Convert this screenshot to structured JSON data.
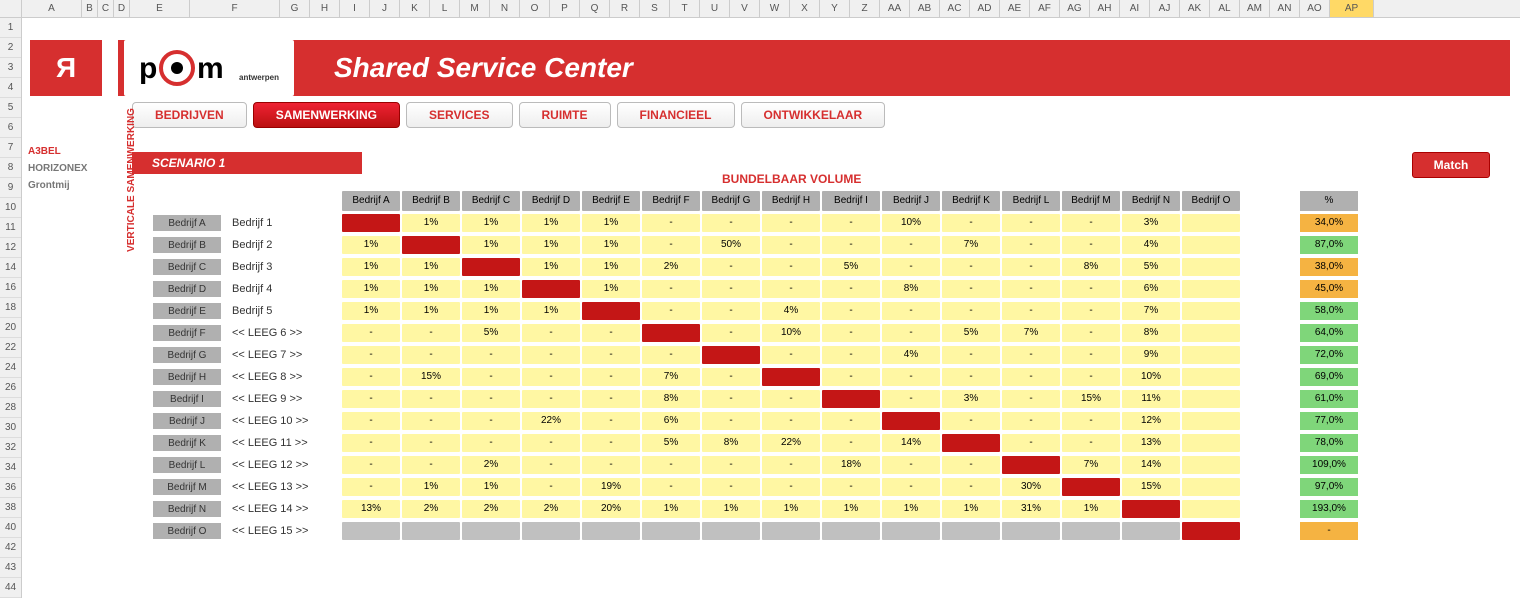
{
  "title": "Shared Service Center",
  "scenario_label": "SCENARIO 1",
  "subtitle": "BUNDELBAAR VOLUME",
  "match_label": "Match",
  "pct_header": "%",
  "red_logo_glyph": "Я",
  "sidebar_text_logos": [
    "A3BEL",
    "HORIZONEX",
    "Grontmij"
  ],
  "nav": [
    {
      "label": "BEDRIJVEN",
      "active": false
    },
    {
      "label": "SAMENWERKING",
      "active": true
    },
    {
      "label": "SERVICES",
      "active": false
    },
    {
      "label": "RUIMTE",
      "active": false
    },
    {
      "label": "FINANCIEEL",
      "active": false
    },
    {
      "label": "ONTWIKKELAAR",
      "active": false
    }
  ],
  "vertical_axis_label": "VERTICALE SAMENWERKING",
  "col_headers_excel": {
    "labels": [
      "A",
      "B",
      "C",
      "D",
      "E",
      "F",
      "G",
      "H",
      "I",
      "J",
      "K",
      "L",
      "M",
      "N",
      "O",
      "P",
      "Q",
      "R",
      "S",
      "T",
      "U",
      "V",
      "W",
      "X",
      "Y",
      "Z",
      "AA",
      "AB",
      "AC",
      "AD",
      "AE",
      "AF",
      "AG",
      "AH",
      "AI",
      "AJ",
      "AK",
      "AL",
      "AM",
      "AN",
      "AO",
      "AP"
    ],
    "widths": [
      60,
      16,
      16,
      16,
      60,
      90,
      30,
      30,
      30,
      30,
      30,
      30,
      30,
      30,
      30,
      30,
      30,
      30,
      30,
      30,
      30,
      30,
      30,
      30,
      30,
      30,
      30,
      30,
      30,
      30,
      30,
      30,
      30,
      30,
      30,
      30,
      30,
      30,
      30,
      30,
      30,
      44
    ],
    "selected_index": 41
  },
  "row_headers_excel": [
    "1",
    "2",
    "3",
    "4",
    "5",
    "6",
    "7",
    "8",
    "9",
    "10",
    "11",
    "12",
    "14",
    "16",
    "18",
    "20",
    "22",
    "24",
    "26",
    "28",
    "30",
    "32",
    "34",
    "36",
    "38",
    "40",
    "42",
    "43",
    "44"
  ],
  "companies": [
    "Bedrijf A",
    "Bedrijf B",
    "Bedrijf C",
    "Bedrijf D",
    "Bedrijf E",
    "Bedrijf F",
    "Bedrijf G",
    "Bedrijf H",
    "Bedrijf I",
    "Bedrijf J",
    "Bedrijf K",
    "Bedrijf L",
    "Bedrijf M",
    "Bedrijf N",
    "Bedrijf O"
  ],
  "row_names": [
    "Bedrijf 1",
    "Bedrijf 2",
    "Bedrijf 3",
    "Bedrijf 4",
    "Bedrijf 5",
    "<< LEEG 6 >>",
    "<< LEEG 7 >>",
    "<< LEEG 8 >>",
    "<< LEEG 9 >>",
    "<< LEEG 10 >>",
    "<< LEEG 11 >>",
    "<< LEEG 12 >>",
    "<< LEEG 13 >>",
    "<< LEEG 14 >>",
    "<< LEEG 15 >>"
  ],
  "matrix": [
    [
      "R",
      "1%",
      "1%",
      "1%",
      "1%",
      "-",
      "-",
      "-",
      "-",
      "10%",
      "-",
      "-",
      "-",
      "3%",
      ""
    ],
    [
      "1%",
      "R",
      "1%",
      "1%",
      "1%",
      "-",
      "50%",
      "-",
      "-",
      "-",
      "7%",
      "-",
      "-",
      "4%",
      ""
    ],
    [
      "1%",
      "1%",
      "R",
      "1%",
      "1%",
      "2%",
      "-",
      "-",
      "5%",
      "-",
      "-",
      "-",
      "8%",
      "5%",
      ""
    ],
    [
      "1%",
      "1%",
      "1%",
      "R",
      "1%",
      "-",
      "-",
      "-",
      "-",
      "8%",
      "-",
      "-",
      "-",
      "6%",
      ""
    ],
    [
      "1%",
      "1%",
      "1%",
      "1%",
      "R",
      "-",
      "-",
      "4%",
      "-",
      "-",
      "-",
      "-",
      "-",
      "7%",
      ""
    ],
    [
      "-",
      "-",
      "5%",
      "-",
      "-",
      "R",
      "-",
      "10%",
      "-",
      "-",
      "5%",
      "7%",
      "-",
      "8%",
      ""
    ],
    [
      "-",
      "-",
      "-",
      "-",
      "-",
      "-",
      "R",
      "-",
      "-",
      "4%",
      "-",
      "-",
      "-",
      "9%",
      ""
    ],
    [
      "-",
      "15%",
      "-",
      "-",
      "-",
      "7%",
      "-",
      "R",
      "-",
      "-",
      "-",
      "-",
      "-",
      "10%",
      ""
    ],
    [
      "-",
      "-",
      "-",
      "-",
      "-",
      "8%",
      "-",
      "-",
      "R",
      "-",
      "3%",
      "-",
      "15%",
      "11%",
      ""
    ],
    [
      "-",
      "-",
      "-",
      "22%",
      "-",
      "6%",
      "-",
      "-",
      "-",
      "R",
      "-",
      "-",
      "-",
      "12%",
      ""
    ],
    [
      "-",
      "-",
      "-",
      "-",
      "-",
      "5%",
      "8%",
      "22%",
      "-",
      "14%",
      "R",
      "-",
      "-",
      "13%",
      ""
    ],
    [
      "-",
      "-",
      "2%",
      "-",
      "-",
      "-",
      "-",
      "-",
      "18%",
      "-",
      "-",
      "R",
      "7%",
      "14%",
      ""
    ],
    [
      "-",
      "1%",
      "1%",
      "-",
      "19%",
      "-",
      "-",
      "-",
      "-",
      "-",
      "-",
      "30%",
      "R",
      "15%",
      ""
    ],
    [
      "13%",
      "2%",
      "2%",
      "2%",
      "20%",
      "1%",
      "1%",
      "1%",
      "1%",
      "1%",
      "1%",
      "31%",
      "1%",
      "R",
      ""
    ],
    [
      "G",
      "G",
      "G",
      "G",
      "G",
      "G",
      "G",
      "G",
      "G",
      "G",
      "G",
      "G",
      "G",
      "G",
      "R"
    ]
  ],
  "match_values": [
    "34,0%",
    "87,0%",
    "38,0%",
    "45,0%",
    "58,0%",
    "64,0%",
    "72,0%",
    "69,0%",
    "61,0%",
    "77,0%",
    "78,0%",
    "109,0%",
    "97,0%",
    "193,0%",
    "-"
  ],
  "match_colors": [
    "#f5b342",
    "#7fd67a",
    "#f5b342",
    "#f5b342",
    "#7fd67a",
    "#7fd67a",
    "#7fd67a",
    "#7fd67a",
    "#7fd67a",
    "#7fd67a",
    "#7fd67a",
    "#7fd67a",
    "#7fd67a",
    "#7fd67a",
    "#f5b342"
  ],
  "colors": {
    "brand_red": "#d62f2f",
    "cell_yellow": "#fff7a3",
    "cell_red": "#c41616",
    "cell_grey": "#c0c0c0",
    "header_grey": "#b0b0b0"
  }
}
